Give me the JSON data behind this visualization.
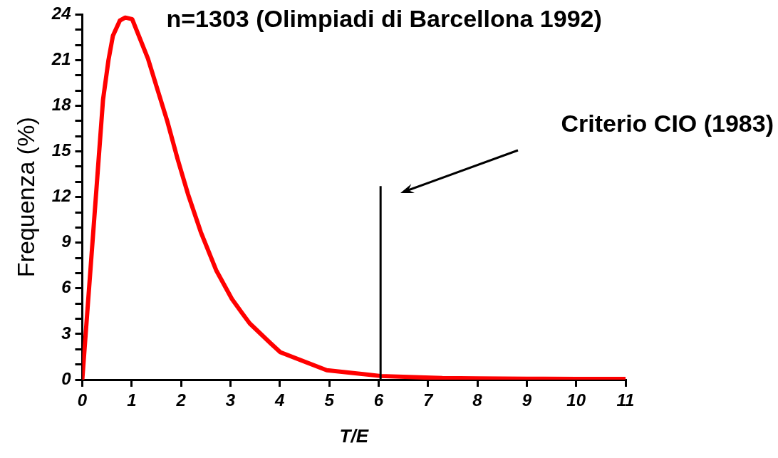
{
  "chart_data": {
    "type": "line",
    "title": "n=1303 (Olimpiadi di Barcellona 1992)",
    "xlabel": "T/E",
    "ylabel": "Frequenza (%)",
    "x": [
      0,
      0.27,
      0.42,
      0.53,
      0.62,
      0.76,
      0.87,
      1.01,
      1.17,
      1.33,
      1.51,
      1.72,
      1.93,
      2.14,
      2.4,
      2.71,
      3.03,
      3.23,
      3.39,
      3.81,
      4.01,
      4.95,
      6.04,
      7.29,
      8,
      9,
      10,
      11
    ],
    "series": [
      {
        "color": "#ff0000",
        "values": [
          0,
          11.8,
          18.4,
          21.0,
          22.6,
          23.6,
          23.8,
          23.7,
          22.4,
          21.1,
          19.2,
          17.0,
          14.5,
          12.2,
          9.7,
          7.2,
          5.3,
          4.4,
          3.7,
          2.4,
          1.8,
          0.62,
          0.24,
          0.1,
          0.08,
          0.06,
          0.05,
          0.05
        ]
      }
    ],
    "xlim": [
      0,
      11
    ],
    "xticks": [
      0,
      1,
      2,
      3,
      4,
      5,
      6,
      7,
      8,
      9,
      10,
      11
    ],
    "ylim": [
      0,
      24
    ],
    "yticks": [
      0,
      {
        "value": 1,
        "label": null
      },
      {
        "value": 2,
        "label": null
      },
      3,
      {
        "value": 4,
        "label": null
      },
      {
        "value": 5,
        "label": null
      },
      6,
      {
        "value": 7,
        "label": null
      },
      {
        "value": 8,
        "label": null
      },
      9,
      {
        "value": 10,
        "label": null
      },
      {
        "value": 11,
        "label": null
      },
      12,
      {
        "value": 13,
        "label": null
      },
      {
        "value": 14,
        "label": null
      },
      15,
      {
        "value": 16,
        "label": null
      },
      {
        "value": 17,
        "label": null
      },
      18,
      {
        "value": 19,
        "label": null
      },
      {
        "value": 20,
        "label": null
      },
      21,
      {
        "value": 22,
        "label": null
      },
      {
        "value": 23,
        "label": null
      },
      24
    ],
    "ref_lines": [
      {
        "axis": "x",
        "value": 6.04,
        "label": "Criterio CIO (1983)",
        "color": "#000000"
      }
    ],
    "marker": "none",
    "line_style": "solid",
    "legend": false
  }
}
